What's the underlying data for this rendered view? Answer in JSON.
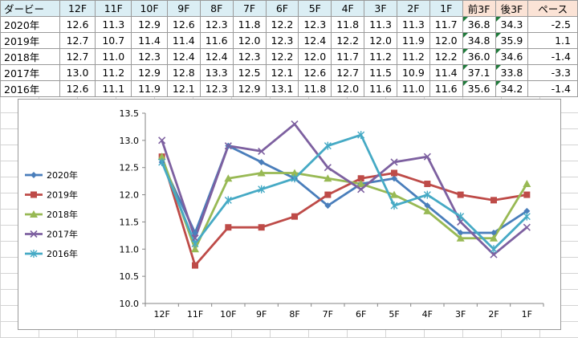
{
  "table": {
    "header": [
      "ダービー",
      "12F",
      "11F",
      "10F",
      "9F",
      "8F",
      "7F",
      "6F",
      "5F",
      "4F",
      "3F",
      "2F",
      "1F",
      "前3F",
      "後3F",
      "ペース"
    ],
    "rows": [
      [
        "2020年",
        "12.6",
        "11.3",
        "12.9",
        "12.6",
        "12.3",
        "11.8",
        "12.2",
        "12.3",
        "11.8",
        "11.3",
        "11.3",
        "11.7",
        "36.8",
        "34.3",
        "-2.5"
      ],
      [
        "2019年",
        "12.7",
        "10.7",
        "11.4",
        "11.4",
        "11.6",
        "12.0",
        "12.3",
        "12.4",
        "12.2",
        "12.0",
        "11.9",
        "12.0",
        "34.8",
        "35.9",
        "1.1"
      ],
      [
        "2018年",
        "12.7",
        "11.0",
        "12.3",
        "12.4",
        "12.4",
        "12.3",
        "12.2",
        "12.0",
        "11.7",
        "11.2",
        "11.2",
        "12.2",
        "36.0",
        "34.6",
        "-1.4"
      ],
      [
        "2017年",
        "13.0",
        "11.2",
        "12.9",
        "12.8",
        "13.3",
        "12.5",
        "12.1",
        "12.6",
        "12.7",
        "11.5",
        "10.9",
        "11.4",
        "37.1",
        "33.8",
        "-3.3"
      ],
      [
        "2016年",
        "12.6",
        "11.1",
        "11.9",
        "12.1",
        "12.3",
        "12.9",
        "13.1",
        "11.8",
        "12.0",
        "11.6",
        "11.0",
        "11.6",
        "35.6",
        "34.2",
        "-1.4"
      ]
    ]
  },
  "chart_data": {
    "type": "line",
    "categories": [
      "12F",
      "11F",
      "10F",
      "9F",
      "8F",
      "7F",
      "6F",
      "5F",
      "4F",
      "3F",
      "2F",
      "1F"
    ],
    "ylim": [
      10.0,
      13.5
    ],
    "yticks": [
      "10.0",
      "10.5",
      "11.0",
      "11.5",
      "12.0",
      "12.5",
      "13.0",
      "13.5"
    ],
    "grid": false,
    "legend_position": "left",
    "series": [
      {
        "name": "2020年",
        "color": "#4a7ebb",
        "marker": "diamond",
        "values": [
          12.6,
          11.3,
          12.9,
          12.6,
          12.3,
          11.8,
          12.2,
          12.3,
          11.8,
          11.3,
          11.3,
          11.7
        ]
      },
      {
        "name": "2019年",
        "color": "#be4b48",
        "marker": "square",
        "values": [
          12.7,
          10.7,
          11.4,
          11.4,
          11.6,
          12.0,
          12.3,
          12.4,
          12.2,
          12.0,
          11.9,
          12.0
        ]
      },
      {
        "name": "2018年",
        "color": "#98b954",
        "marker": "triangle",
        "values": [
          12.7,
          11.0,
          12.3,
          12.4,
          12.4,
          12.3,
          12.2,
          12.0,
          11.7,
          11.2,
          11.2,
          12.2
        ]
      },
      {
        "name": "2017年",
        "color": "#7d60a0",
        "marker": "x",
        "values": [
          13.0,
          11.2,
          12.9,
          12.8,
          13.3,
          12.5,
          12.1,
          12.6,
          12.7,
          11.5,
          10.9,
          11.4
        ]
      },
      {
        "name": "2016年",
        "color": "#46aac5",
        "marker": "star",
        "values": [
          12.6,
          11.1,
          11.9,
          12.1,
          12.3,
          12.9,
          13.1,
          11.8,
          12.0,
          11.6,
          11.0,
          11.6
        ]
      }
    ]
  }
}
